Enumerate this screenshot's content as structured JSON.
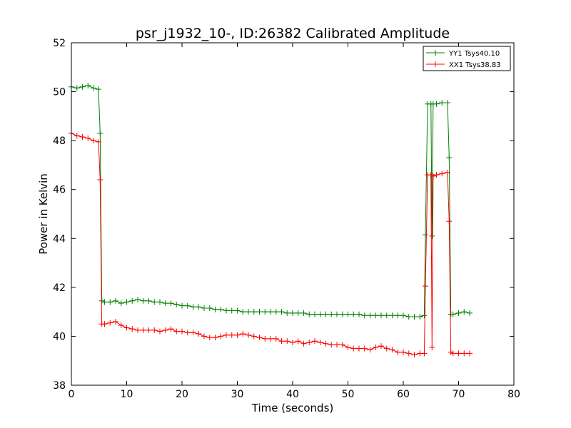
{
  "chart_data": {
    "type": "line",
    "title": "psr_j1932_10-, ID:26382 Calibrated Amplitude",
    "xlabel": "Time (seconds)",
    "ylabel": "Power in Kelvin",
    "xlim": [
      0,
      80
    ],
    "ylim": [
      38,
      52
    ],
    "xticks": [
      0,
      10,
      20,
      30,
      40,
      50,
      60,
      70,
      80
    ],
    "yticks": [
      38,
      40,
      42,
      44,
      46,
      48,
      50,
      52
    ],
    "grid": false,
    "legend_position": "top-right",
    "series": [
      {
        "name": "YY1 Tsys40.10",
        "color": "#008000",
        "marker": "+",
        "x": [
          0,
          1,
          2,
          3,
          4,
          4.9,
          5.2,
          5.5,
          6,
          7,
          8,
          9,
          10,
          11,
          12,
          13,
          14,
          15,
          16,
          17,
          18,
          19,
          20,
          21,
          22,
          23,
          24,
          25,
          26,
          27,
          28,
          29,
          30,
          31,
          32,
          33,
          34,
          35,
          36,
          37,
          38,
          39,
          40,
          41,
          42,
          43,
          44,
          45,
          46,
          47,
          48,
          49,
          50,
          51,
          52,
          53,
          54,
          55,
          56,
          57,
          58,
          59,
          60,
          61,
          62,
          63,
          63.8,
          64,
          64.4,
          65,
          65.2,
          65.4,
          66,
          67,
          68,
          68.3,
          68.6,
          69,
          70,
          71,
          72
        ],
        "values": [
          50.2,
          50.15,
          50.2,
          50.25,
          50.15,
          50.1,
          48.3,
          41.45,
          41.4,
          41.4,
          41.45,
          41.35,
          41.4,
          41.45,
          41.5,
          41.45,
          41.45,
          41.4,
          41.4,
          41.35,
          41.35,
          41.3,
          41.25,
          41.25,
          41.2,
          41.2,
          41.15,
          41.15,
          41.1,
          41.1,
          41.05,
          41.05,
          41.05,
          41.0,
          41.0,
          41.0,
          41.0,
          41.0,
          41.0,
          41.0,
          41.0,
          40.95,
          40.95,
          40.95,
          40.95,
          40.9,
          40.9,
          40.9,
          40.9,
          40.9,
          40.9,
          40.9,
          40.9,
          40.9,
          40.9,
          40.85,
          40.85,
          40.85,
          40.85,
          40.85,
          40.85,
          40.85,
          40.85,
          40.8,
          40.8,
          40.8,
          40.85,
          44.15,
          49.5,
          49.5,
          44.1,
          49.5,
          49.5,
          49.55,
          49.55,
          47.3,
          40.9,
          40.9,
          40.95,
          41.0,
          40.95
        ]
      },
      {
        "name": "XX1 Tsys38.83",
        "color": "#ff0000",
        "marker": "+",
        "x": [
          0,
          1,
          2,
          3,
          4,
          4.9,
          5.2,
          5.5,
          6,
          7,
          8,
          9,
          10,
          11,
          12,
          13,
          14,
          15,
          16,
          17,
          18,
          19,
          20,
          21,
          22,
          23,
          24,
          25,
          26,
          27,
          28,
          29,
          30,
          31,
          32,
          33,
          34,
          35,
          36,
          37,
          38,
          39,
          40,
          41,
          42,
          43,
          44,
          45,
          46,
          47,
          48,
          49,
          50,
          51,
          52,
          53,
          54,
          55,
          56,
          57,
          58,
          59,
          60,
          61,
          62,
          63,
          63.8,
          64,
          64.4,
          65,
          65.2,
          65.4,
          66,
          67,
          68,
          68.3,
          68.6,
          69,
          70,
          71,
          72
        ],
        "values": [
          48.3,
          48.2,
          48.15,
          48.1,
          48.0,
          47.95,
          46.4,
          40.5,
          40.5,
          40.55,
          40.6,
          40.45,
          40.35,
          40.3,
          40.25,
          40.25,
          40.25,
          40.25,
          40.2,
          40.25,
          40.3,
          40.2,
          40.2,
          40.15,
          40.15,
          40.1,
          40.0,
          39.95,
          39.95,
          40.0,
          40.05,
          40.05,
          40.05,
          40.1,
          40.05,
          40.0,
          39.95,
          39.9,
          39.9,
          39.9,
          39.8,
          39.8,
          39.75,
          39.8,
          39.7,
          39.75,
          39.8,
          39.75,
          39.7,
          39.65,
          39.65,
          39.65,
          39.55,
          39.5,
          39.5,
          39.5,
          39.45,
          39.55,
          39.6,
          39.5,
          39.45,
          39.35,
          39.35,
          39.3,
          39.25,
          39.3,
          39.3,
          42.05,
          46.6,
          46.6,
          39.55,
          46.55,
          46.6,
          46.65,
          46.7,
          44.7,
          39.35,
          39.3,
          39.3,
          39.3,
          39.3
        ]
      }
    ]
  }
}
